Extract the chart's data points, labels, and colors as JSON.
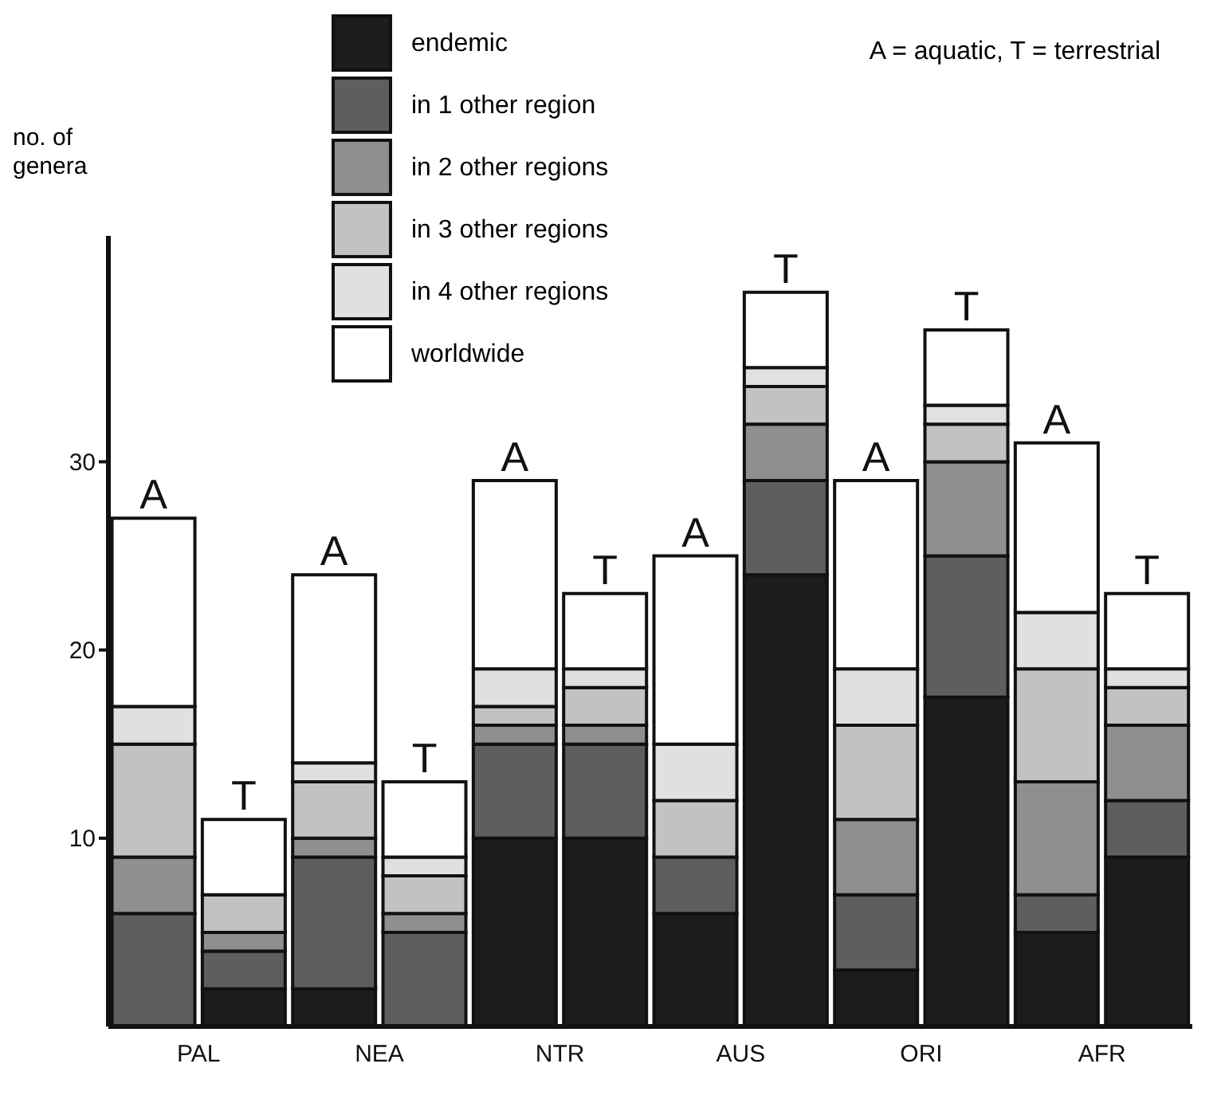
{
  "chart_data": {
    "type": "bar",
    "stacked": true,
    "ylabel": "no. of genera",
    "legend": "top",
    "categories": [
      "PAL",
      null,
      "NEA",
      null,
      "NTR",
      null,
      "AUS",
      null,
      "ORI",
      null,
      "AFR",
      null
    ],
    "ylim": [
      0,
      42
    ],
    "yticks": [
      10,
      20,
      30
    ],
    "series": [
      {
        "name": "endemic",
        "color": "#1c1c1c",
        "values": [
          0,
          2,
          2,
          0,
          10,
          10,
          6,
          24,
          3,
          17.5,
          5,
          9
        ]
      },
      {
        "name": "in 1 other region",
        "color": "#5e5e5e",
        "values": [
          6,
          2,
          7,
          5,
          5,
          5,
          3,
          5,
          4,
          7.5,
          2,
          3
        ]
      },
      {
        "name": "in 2 other regions",
        "color": "#8f8f8f",
        "values": [
          3,
          1,
          1,
          1,
          1,
          1,
          0,
          3,
          4,
          5,
          6,
          4
        ]
      },
      {
        "name": "in 3 other regions",
        "color": "#c2c2c2",
        "values": [
          6,
          2,
          3,
          2,
          1,
          2,
          3,
          2,
          5,
          2,
          6,
          2
        ]
      },
      {
        "name": "in 4 other regions",
        "color": "#e0e0e0",
        "values": [
          2,
          0,
          1,
          1,
          2,
          1,
          3,
          1,
          3,
          1,
          3,
          1
        ]
      },
      {
        "name": "worldwide",
        "color": "#ffffff",
        "values": [
          10,
          4,
          10,
          4,
          10,
          4,
          10,
          4,
          10,
          4,
          9,
          4
        ],
        "value_labels": [
          "A",
          "T",
          "A",
          "T",
          "A",
          "T",
          "A",
          "T",
          "A",
          "T",
          "A",
          "T"
        ]
      }
    ],
    "annotations": [
      "A = aquatic, T = terrestrial"
    ]
  }
}
